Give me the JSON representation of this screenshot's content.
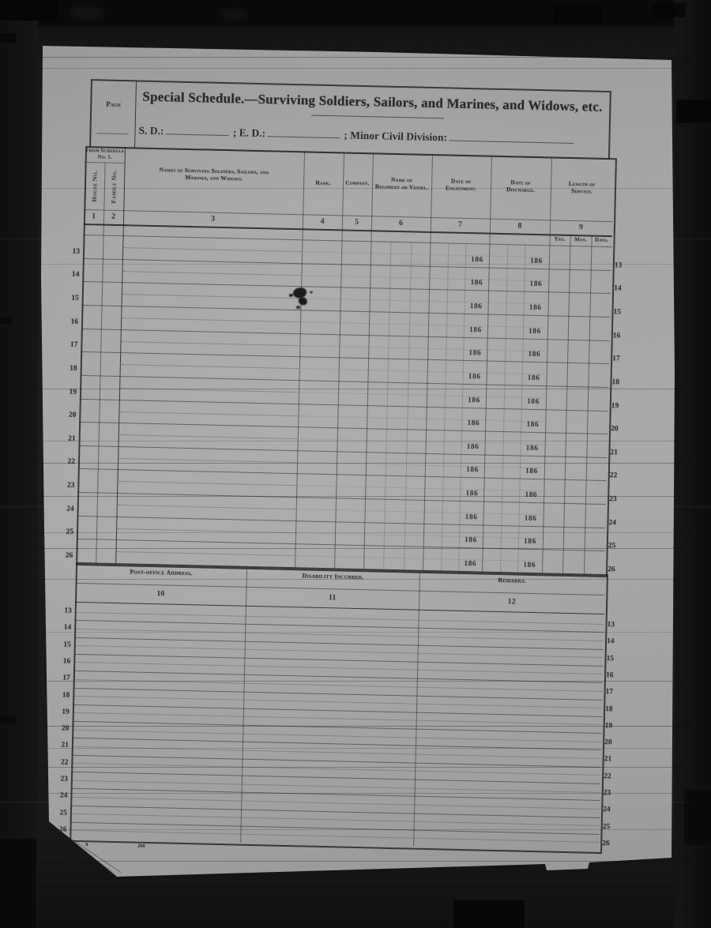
{
  "document": {
    "page_label": "Page",
    "title": "Special Schedule.—Surviving Soldiers, Sailors, and Marines, and Widows, etc.",
    "subheader": {
      "sd_label": "S. D.:",
      "ed_label": "; E. D.:",
      "mcd_label": "; Minor Civil Division:"
    }
  },
  "table1": {
    "from_schedule_note": "From Schedule No. 1.",
    "columns": {
      "house": {
        "label": "House No.",
        "number": "1"
      },
      "family": {
        "label": "Family No.",
        "number": "2"
      },
      "names": {
        "label_line1": "Names of Surviving Soldiers, Sailors, and",
        "label_line2": "Marines, and Widows.",
        "number": "3"
      },
      "rank": {
        "label": "Rank.",
        "number": "4"
      },
      "company": {
        "label": "Company.",
        "number": "5"
      },
      "regiment": {
        "label_line1": "Name of",
        "label_line2": "Regiment or Vessel.",
        "number": "6"
      },
      "enlistment": {
        "label_line1": "Date of",
        "label_line2": "Enlistment.",
        "number": "7"
      },
      "discharge": {
        "label_line1": "Date of",
        "label_line2": "Discharge.",
        "number": "8"
      },
      "service": {
        "label_line1": "Length of",
        "label_line2": "Service.",
        "number": "9",
        "sub_columns": [
          "Yrs.",
          "Mos.",
          "Days."
        ]
      }
    },
    "date_year_prefix": "186",
    "row_numbers": [
      13,
      14,
      15,
      16,
      17,
      18,
      19,
      20,
      21,
      22,
      23,
      24,
      25,
      26
    ]
  },
  "table2": {
    "columns": [
      {
        "label": "Post-office Address.",
        "number": "10"
      },
      {
        "label": "Disability Incurred.",
        "number": "11"
      },
      {
        "label": "Remarks.",
        "number": "12"
      }
    ],
    "row_numbers": [
      13,
      14,
      15,
      16,
      17,
      18,
      19,
      20,
      21,
      22,
      23,
      24,
      25,
      26
    ]
  },
  "footer": {
    "print_marks": [
      "9",
      "260"
    ]
  },
  "colors": {
    "film_background": "#141414",
    "paper": "#a3a3a3",
    "ink": "#2d2d32"
  }
}
